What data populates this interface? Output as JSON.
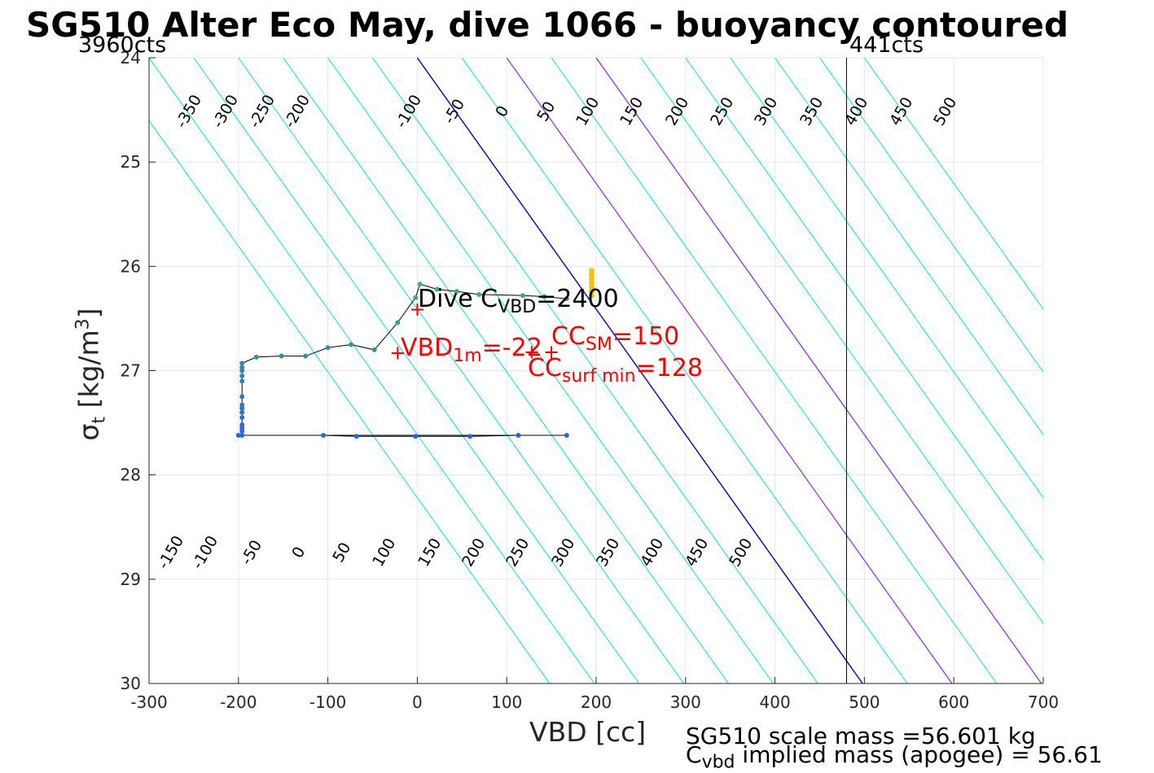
{
  "title": "SG510 Alter Eco May, dive 1066 - buoyancy contoured",
  "top_left_counts": "3960cts",
  "top_right_counts": "441cts",
  "xlabel": "VBD [cc]",
  "ylabel_main": "σ",
  "ylabel_sub": "t",
  "ylabel_unit_pre": " [kg/m",
  "ylabel_unit_sup": "3",
  "ylabel_unit_post": "]",
  "footer": {
    "line1": "SG510 scale mass =56.601 kg",
    "line2_pre": "C",
    "line2_sub": "vbd",
    "line2_post": " implied mass (apogee) = 56.61"
  },
  "annotations": {
    "dive_cvbd": {
      "pre": "Dive C",
      "sub": "VBD",
      "post": "=2400",
      "color": "#000000"
    },
    "vbd_1m": {
      "pre": "VBD",
      "sub": "1m",
      "post": "=-22",
      "color": "#ff0000"
    },
    "cc_sm": {
      "pre": "CC",
      "sub": "SM",
      "post": "=150",
      "color": "#ff0000"
    },
    "cc_surf_min": {
      "pre": "CC",
      "sub": "surf min",
      "post": "=128",
      "color": "#ff0000"
    }
  },
  "colors": {
    "contour_cyan": "#00e5ee",
    "contour_zero": "#0000cc",
    "contour_magenta": "#a020f0",
    "marker_red": "#ff0000",
    "grid": "#e6e6e6",
    "axis": "#262626"
  },
  "chart_data": {
    "type": "scatter",
    "title": "SG510 Alter Eco May, dive 1066 - buoyancy contoured",
    "xlabel": "VBD [cc]",
    "ylabel": "σ_t [kg/m^3]",
    "xlim": [
      -300,
      700
    ],
    "ylim": [
      24,
      30
    ],
    "y_reversed": true,
    "grid": true,
    "xticks": [
      -300,
      -200,
      -100,
      0,
      100,
      200,
      300,
      400,
      500,
      600,
      700
    ],
    "xtick_labels": [
      "-300",
      "-200",
      "-100",
      "0",
      "100",
      "200",
      "300",
      "400",
      "500",
      "600",
      "700"
    ],
    "yticks": [
      24,
      25,
      26,
      27,
      28,
      29,
      30
    ],
    "ytick_labels": [
      "24",
      "25",
      "26",
      "27",
      "28",
      "29",
      "30"
    ],
    "vertical_line_x": 480,
    "contour_slope_cc_per_sigma": 83,
    "contours": {
      "cyan_top": [
        -350,
        -300,
        -250,
        -200,
        -150,
        -100,
        -50,
        50,
        150,
        200,
        250,
        300,
        350,
        400,
        450,
        500
      ],
      "labels_top": [
        "-350",
        "-300",
        "-250",
        "-200",
        "-100",
        "-50",
        "0",
        "50",
        "100",
        "150",
        "200",
        "250",
        "300",
        "350",
        "400",
        "450",
        "500"
      ],
      "labels_bottom": [
        "-150",
        "-100",
        "-50",
        "0",
        "50",
        "100",
        "150",
        "200",
        "250",
        "300",
        "350",
        "400",
        "450",
        "500"
      ],
      "zero_line": 0,
      "magenta_lines": [
        100,
        200
      ]
    },
    "series": [
      {
        "points": [
          [
            -200,
            27.62
          ],
          [
            -105,
            27.62
          ],
          [
            -68,
            27.63
          ],
          [
            -2,
            27.63
          ],
          [
            59,
            27.63
          ],
          [
            113,
            27.62
          ],
          [
            167,
            27.62
          ],
          [
            -196,
            27.62
          ],
          [
            -196,
            27.58
          ],
          [
            -196,
            27.55
          ],
          [
            -196,
            27.52
          ],
          [
            -196,
            27.45
          ],
          [
            -196,
            27.4
          ],
          [
            -196,
            27.36
          ],
          [
            -196,
            27.33
          ],
          [
            -196,
            27.25
          ],
          [
            -196,
            27.1
          ],
          [
            -196,
            27.05
          ],
          [
            -196,
            27.0
          ],
          [
            -196,
            26.97
          ],
          [
            -196,
            26.93
          ],
          [
            -180,
            26.87
          ],
          [
            -152,
            26.86
          ],
          [
            -125,
            26.86
          ],
          [
            -100,
            26.78
          ],
          [
            -74,
            26.75
          ],
          [
            -48,
            26.8
          ],
          [
            -22,
            26.54
          ],
          [
            -2,
            26.3
          ],
          [
            3,
            26.17
          ],
          [
            22,
            26.22
          ],
          [
            44,
            26.24
          ],
          [
            69,
            26.27
          ],
          [
            118,
            26.28
          ],
          [
            142,
            26.29
          ],
          [
            167,
            26.31
          ]
        ],
        "colors": "depth-shaded (blue deep to green shallow)"
      },
      {
        "points": [
          [
            195,
            26.04
          ],
          [
            195,
            26.08
          ],
          [
            195,
            26.12
          ],
          [
            195,
            26.16
          ],
          [
            195,
            26.2
          ],
          [
            195,
            26.24
          ],
          [
            195,
            26.28
          ]
        ],
        "colors": "yellow"
      }
    ],
    "red_markers": [
      [
        0,
        26.41
      ],
      [
        -22,
        26.83
      ],
      [
        128,
        26.82
      ],
      [
        150,
        26.82
      ]
    ]
  }
}
